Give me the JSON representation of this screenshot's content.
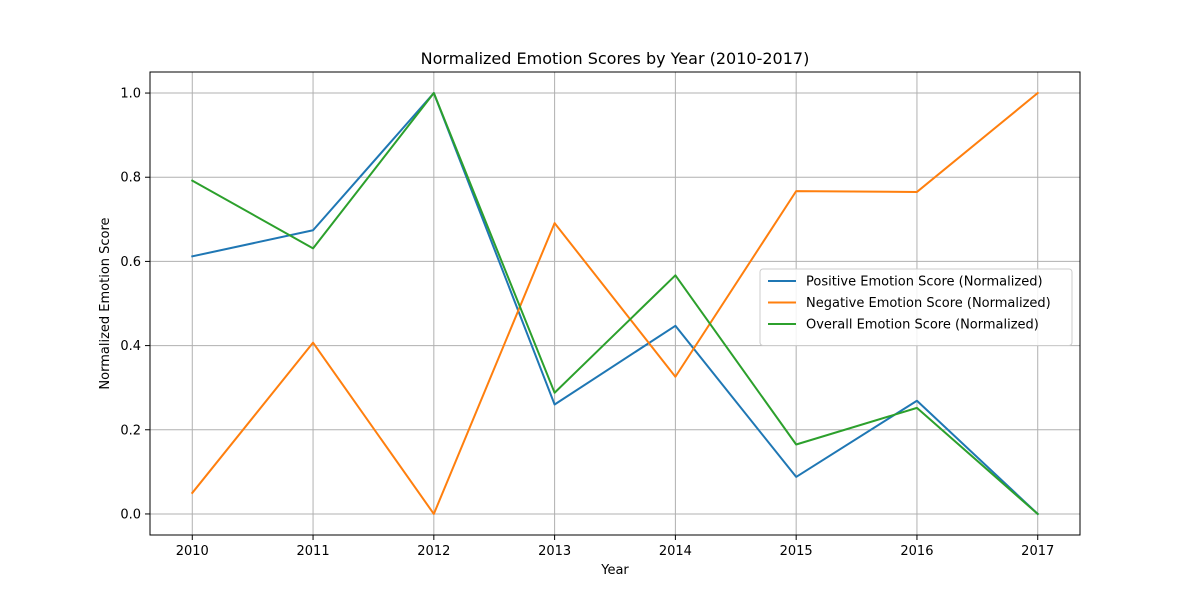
{
  "chart_data": {
    "type": "line",
    "title": "Normalized Emotion Scores by Year (2010-2017)",
    "xlabel": "Year",
    "ylabel": "Normalized Emotion Score",
    "x": [
      2010,
      2011,
      2012,
      2013,
      2014,
      2015,
      2016,
      2017
    ],
    "x_tick_labels": [
      "2010",
      "2011",
      "2012",
      "2013",
      "2014",
      "2015",
      "2016",
      "2017"
    ],
    "y_ticks": [
      0.0,
      0.2,
      0.4,
      0.6,
      0.8,
      1.0
    ],
    "y_tick_labels": [
      "0.0",
      "0.2",
      "0.4",
      "0.6",
      "0.8",
      "1.0"
    ],
    "xlim": [
      2009.65,
      2017.35
    ],
    "ylim": [
      -0.05,
      1.05
    ],
    "grid": true,
    "legend_position": "center-right",
    "series": [
      {
        "name": "Positive Emotion Score (Normalized)",
        "color": "#1f77b4",
        "values": [
          0.612,
          0.674,
          1.0,
          0.26,
          0.447,
          0.088,
          0.269,
          0.0
        ]
      },
      {
        "name": "Negative Emotion Score (Normalized)",
        "color": "#ff7f0e",
        "values": [
          0.05,
          0.407,
          0.0,
          0.691,
          0.326,
          0.767,
          0.765,
          1.0
        ]
      },
      {
        "name": "Overall Emotion Score (Normalized)",
        "color": "#2ca02c",
        "values": [
          0.792,
          0.631,
          1.0,
          0.288,
          0.567,
          0.165,
          0.252,
          0.0
        ]
      }
    ]
  }
}
